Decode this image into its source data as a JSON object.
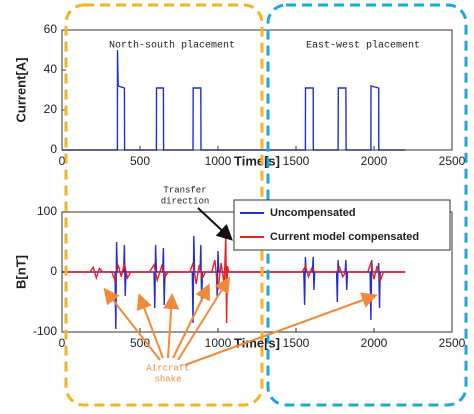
{
  "chart_data": [
    {
      "type": "line",
      "ylabel": "Current[A]",
      "xlabel": "Time[s]",
      "xlim": [
        0,
        2500
      ],
      "xticks": [
        0,
        500,
        1000,
        1500,
        2000,
        2500
      ],
      "ylim": [
        0,
        60
      ],
      "yticks": [
        0,
        20,
        40,
        60
      ],
      "series": [
        {
          "color": "#1f2fd6",
          "x": [
            0,
            355,
            356,
            360,
            400,
            401,
            605,
            606,
            650,
            651,
            840,
            841,
            890,
            891,
            1560,
            1561,
            1610,
            1611,
            1770,
            1771,
            1820,
            1821,
            1980,
            1981,
            2030,
            2031,
            2200
          ],
          "values": [
            0,
            0,
            50,
            32,
            31,
            0,
            0,
            31,
            31,
            0,
            0,
            31,
            31,
            0,
            0,
            31,
            31,
            0,
            0,
            31,
            31,
            0,
            0,
            32,
            31,
            0,
            0
          ]
        }
      ]
    },
    {
      "type": "line",
      "ylabel": "B[nT]",
      "xlabel": "Time[s]",
      "xlim": [
        0,
        2500
      ],
      "xticks": [
        0,
        500,
        1000,
        1500,
        2000,
        2500
      ],
      "ylim": [
        -100,
        100
      ],
      "yticks": [
        -100,
        0,
        100
      ],
      "legend": "upper right",
      "series": [
        {
          "name": "Uncompensated",
          "color": "#1f2fd6",
          "x": [
            0,
            340,
            345,
            350,
            355,
            395,
            400,
            405,
            410,
            590,
            595,
            600,
            605,
            645,
            650,
            655,
            660,
            835,
            840,
            845,
            850,
            885,
            890,
            895,
            900,
            990,
            995,
            1000,
            1005,
            1550,
            1555,
            1560,
            1565,
            1605,
            1610,
            1615,
            1620,
            1760,
            1765,
            1770,
            1775,
            1815,
            1820,
            1825,
            1830,
            1975,
            1980,
            1985,
            1990,
            2025,
            2030,
            2035,
            2040,
            2200
          ],
          "values": [
            0,
            0,
            -95,
            50,
            0,
            0,
            45,
            -40,
            0,
            0,
            -60,
            45,
            0,
            0,
            40,
            -55,
            0,
            0,
            -85,
            60,
            0,
            0,
            45,
            -50,
            0,
            0,
            -40,
            35,
            0,
            0,
            -55,
            25,
            0,
            0,
            25,
            -30,
            0,
            0,
            -50,
            20,
            0,
            0,
            20,
            -30,
            0,
            0,
            -80,
            20,
            0,
            0,
            15,
            -60,
            0,
            0
          ]
        },
        {
          "name": "Current  model compensated",
          "color": "#e8201c",
          "x": [
            0,
            180,
            200,
            220,
            240,
            260,
            320,
            340,
            360,
            380,
            400,
            420,
            440,
            560,
            590,
            610,
            640,
            660,
            680,
            820,
            840,
            860,
            880,
            900,
            920,
            960,
            980,
            1000,
            1020,
            1040,
            1050,
            1055,
            1060,
            1070,
            1540,
            1560,
            1580,
            1600,
            1620,
            1760,
            1780,
            1800,
            1820,
            1960,
            1980,
            2000,
            2020,
            2040,
            2060,
            2200
          ],
          "values": [
            0,
            0,
            8,
            -10,
            6,
            0,
            0,
            -15,
            12,
            -8,
            14,
            -10,
            0,
            0,
            12,
            -14,
            10,
            -8,
            0,
            0,
            15,
            -20,
            12,
            -10,
            0,
            0,
            20,
            -30,
            15,
            -20,
            60,
            -85,
            10,
            0,
            0,
            10,
            -8,
            6,
            0,
            0,
            8,
            -8,
            0,
            0,
            15,
            -12,
            10,
            -15,
            0,
            0
          ]
        }
      ]
    }
  ],
  "annotations": {
    "north_south": "North-south placement",
    "east_west": "East-west placement",
    "transfer": [
      "Transfer",
      "direction"
    ],
    "shake": [
      "Aircraft",
      "shake"
    ]
  }
}
